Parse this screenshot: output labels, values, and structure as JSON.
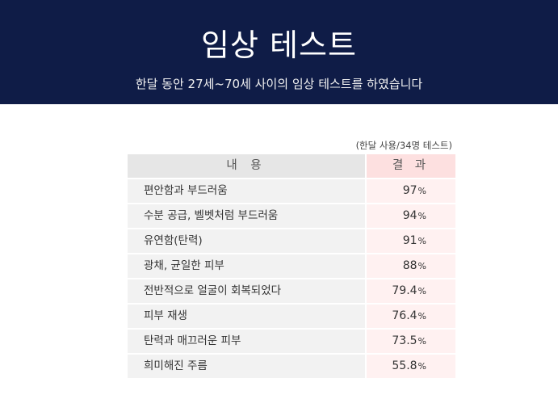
{
  "header": {
    "title": "임상 테스트",
    "subtitle": "한달 동안 27세~70세 사이의 임상 테스트를 하였습니다"
  },
  "table": {
    "note": "(한달 사용/34명 테스트)",
    "headers": [
      "내 용",
      "결 과"
    ],
    "unit": "%",
    "rows": [
      {
        "label": "편안함과 부드러움",
        "value": "97"
      },
      {
        "label": "수분 공급, 벨벳처럼 부드러움",
        "value": "94"
      },
      {
        "label": "유연함(탄력)",
        "value": "91"
      },
      {
        "label": "광채, 균일한 피부",
        "value": "88"
      },
      {
        "label": "전반적으로 얼굴이 회복되었다",
        "value": "79.4"
      },
      {
        "label": "피부 재생",
        "value": "76.4"
      },
      {
        "label": "탄력과 매끄러운 피부",
        "value": "73.5"
      },
      {
        "label": "희미해진 주름",
        "value": "55.8"
      }
    ]
  },
  "colors": {
    "banner_bg": "#0f1c47",
    "label_cell_bg": "#f2f2f2",
    "result_cell_bg": "#fff1f1",
    "result_header_bg": "#fde0e0"
  }
}
